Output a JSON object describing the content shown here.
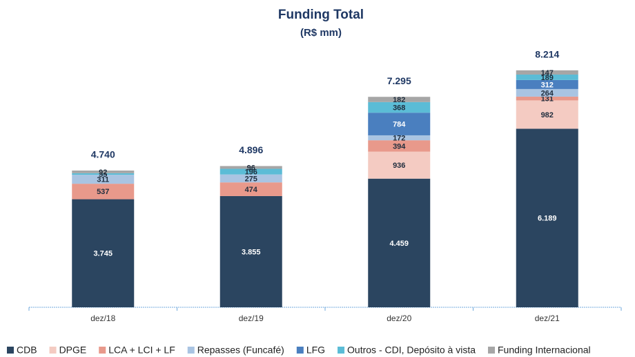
{
  "chart_data": {
    "type": "stacked_bar",
    "title": "Funding Total",
    "subtitle": "(R$ mm)",
    "categories": [
      "dez/18",
      "dez/19",
      "dez/20",
      "dez/21"
    ],
    "ylim": [
      0,
      9000
    ],
    "series": [
      {
        "name": "CDB",
        "color": "#2b4560",
        "values": [
          3745,
          3855,
          4459,
          6189
        ],
        "value_labels": [
          "3.745",
          "3.855",
          "4.459",
          "6.189"
        ]
      },
      {
        "name": "DPGE",
        "color": "#f4cbc2",
        "values": [
          null,
          null,
          936,
          982
        ],
        "value_labels": [
          null,
          null,
          "936",
          "982"
        ]
      },
      {
        "name": "LCA + LCI + LF",
        "color": "#e8998b",
        "values": [
          537,
          474,
          394,
          131
        ],
        "value_labels": [
          "537",
          "474",
          "394",
          "131"
        ]
      },
      {
        "name": "Repasses (Funcafé)",
        "color": "#a9c4e2",
        "values": [
          311,
          275,
          172,
          264
        ],
        "value_labels": [
          "311",
          "275",
          "172",
          "264"
        ]
      },
      {
        "name": "LFG",
        "color": "#4a7fbf",
        "values": [
          null,
          null,
          784,
          312
        ],
        "value_labels": [
          null,
          null,
          "784",
          "312"
        ]
      },
      {
        "name": "Outros - CDI, Depósito à vista",
        "color": "#5bbcd6",
        "values": [
          55,
          196,
          368,
          189
        ],
        "value_labels": [
          "55",
          "196",
          "368",
          "189"
        ]
      },
      {
        "name": "Funding Internacional",
        "color": "#a6a6a6",
        "values": [
          92,
          96,
          182,
          147
        ],
        "value_labels": [
          "92",
          "96",
          "182",
          "147"
        ]
      }
    ],
    "totals": {
      "values": [
        4740,
        4896,
        7295,
        8214
      ],
      "value_labels": [
        "4.740",
        "4.896",
        "7.295",
        "8.214"
      ]
    }
  }
}
